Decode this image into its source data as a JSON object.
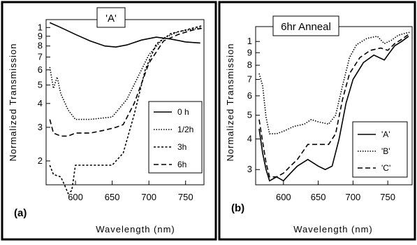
{
  "chart_data": [
    {
      "type": "line",
      "panel_label": "(a)",
      "title": "'A'",
      "xlabel": "Wavelength (nm)",
      "ylabel": "Normalized Transmission",
      "xlim": [
        560,
        775
      ],
      "ylim": [
        1.5,
        1.1
      ],
      "y_scale": "log",
      "x_ticks": [
        "600",
        "650",
        "700",
        "750"
      ],
      "x_tick_values": [
        600,
        650,
        700,
        750
      ],
      "y_ticks": [
        "2",
        "3",
        "4",
        "5",
        "6",
        "7",
        "8",
        "9",
        "1"
      ],
      "y_tick_values": [
        0.2,
        0.3,
        0.4,
        0.5,
        0.6,
        0.7,
        0.8,
        0.9,
        1.0
      ],
      "ylim_values": [
        0.15,
        1.1
      ],
      "legend_position": "right",
      "series": [
        {
          "name": "0 h",
          "dash": "solid",
          "x": [
            565,
            580,
            600,
            620,
            640,
            655,
            670,
            690,
            710,
            730,
            750,
            770
          ],
          "y": [
            1.06,
            1.0,
            0.92,
            0.85,
            0.8,
            0.79,
            0.81,
            0.86,
            0.89,
            0.87,
            0.84,
            0.83
          ]
        },
        {
          "name": "1/2h",
          "dash": "dot",
          "x": [
            565,
            570,
            575,
            580,
            590,
            600,
            620,
            650,
            670,
            685,
            700,
            720,
            740,
            760,
            772
          ],
          "y": [
            0.62,
            0.48,
            0.55,
            0.45,
            0.37,
            0.33,
            0.33,
            0.34,
            0.42,
            0.55,
            0.72,
            0.88,
            0.95,
            0.98,
            1.0
          ]
        },
        {
          "name": "3h",
          "dash": "short",
          "x": [
            565,
            570,
            580,
            585,
            590,
            595,
            600,
            620,
            650,
            665,
            680,
            695,
            710,
            730,
            750,
            772
          ],
          "y": [
            0.19,
            0.17,
            0.165,
            0.15,
            0.135,
            0.14,
            0.19,
            0.19,
            0.19,
            0.22,
            0.35,
            0.6,
            0.82,
            0.93,
            0.97,
            1.02
          ]
        },
        {
          "name": "6h",
          "dash": "long",
          "x": [
            565,
            570,
            580,
            590,
            600,
            620,
            640,
            655,
            665,
            680,
            700,
            720,
            740,
            760,
            772
          ],
          "y": [
            0.33,
            0.28,
            0.27,
            0.27,
            0.28,
            0.28,
            0.29,
            0.3,
            0.31,
            0.4,
            0.65,
            0.85,
            0.92,
            0.97,
            0.99
          ]
        }
      ]
    },
    {
      "type": "line",
      "panel_label": "(b)",
      "title": "6hr Anneal",
      "xlabel": "Wavelength (nm)",
      "ylabel": "Normalized Transmission",
      "xlim": [
        560,
        785
      ],
      "y_scale": "log",
      "x_ticks": [
        "600",
        "650",
        "700",
        "750"
      ],
      "x_tick_values": [
        600,
        650,
        700,
        750
      ],
      "y_ticks": [
        "3",
        "4",
        "5",
        "6",
        "7",
        "8",
        "9",
        "1"
      ],
      "y_tick_values": [
        0.3,
        0.4,
        0.5,
        0.6,
        0.7,
        0.8,
        0.9,
        1.0
      ],
      "ylim_values": [
        0.26,
        1.15
      ],
      "legend_position": "right",
      "series": [
        {
          "name": "'A'",
          "dash": "solid",
          "x": [
            565,
            570,
            575,
            580,
            590,
            600,
            610,
            620,
            635,
            650,
            660,
            670,
            680,
            690,
            700,
            715,
            730,
            745,
            750,
            760,
            770,
            780
          ],
          "y": [
            0.44,
            0.35,
            0.3,
            0.27,
            0.28,
            0.27,
            0.29,
            0.31,
            0.33,
            0.31,
            0.3,
            0.31,
            0.4,
            0.56,
            0.7,
            0.82,
            0.88,
            0.84,
            0.88,
            0.96,
            1.0,
            1.05
          ]
        },
        {
          "name": "'B'",
          "dash": "dot",
          "x": [
            565,
            570,
            575,
            580,
            590,
            600,
            615,
            630,
            640,
            650,
            665,
            675,
            685,
            695,
            705,
            720,
            735,
            745,
            755,
            765,
            775,
            782
          ],
          "y": [
            0.74,
            0.66,
            0.49,
            0.42,
            0.42,
            0.43,
            0.45,
            0.46,
            0.48,
            0.47,
            0.46,
            0.5,
            0.66,
            0.86,
            0.97,
            1.03,
            1.05,
            0.98,
            1.01,
            1.06,
            1.08,
            1.09
          ]
        },
        {
          "name": "'C'",
          "dash": "long",
          "x": [
            565,
            570,
            575,
            580,
            590,
            600,
            610,
            620,
            635,
            650,
            665,
            675,
            685,
            695,
            710,
            725,
            740,
            750,
            760,
            770,
            780
          ],
          "y": [
            0.48,
            0.39,
            0.32,
            0.28,
            0.28,
            0.29,
            0.31,
            0.33,
            0.38,
            0.38,
            0.38,
            0.42,
            0.58,
            0.74,
            0.86,
            0.92,
            0.94,
            0.92,
            0.98,
            1.02,
            1.07
          ]
        }
      ]
    }
  ]
}
